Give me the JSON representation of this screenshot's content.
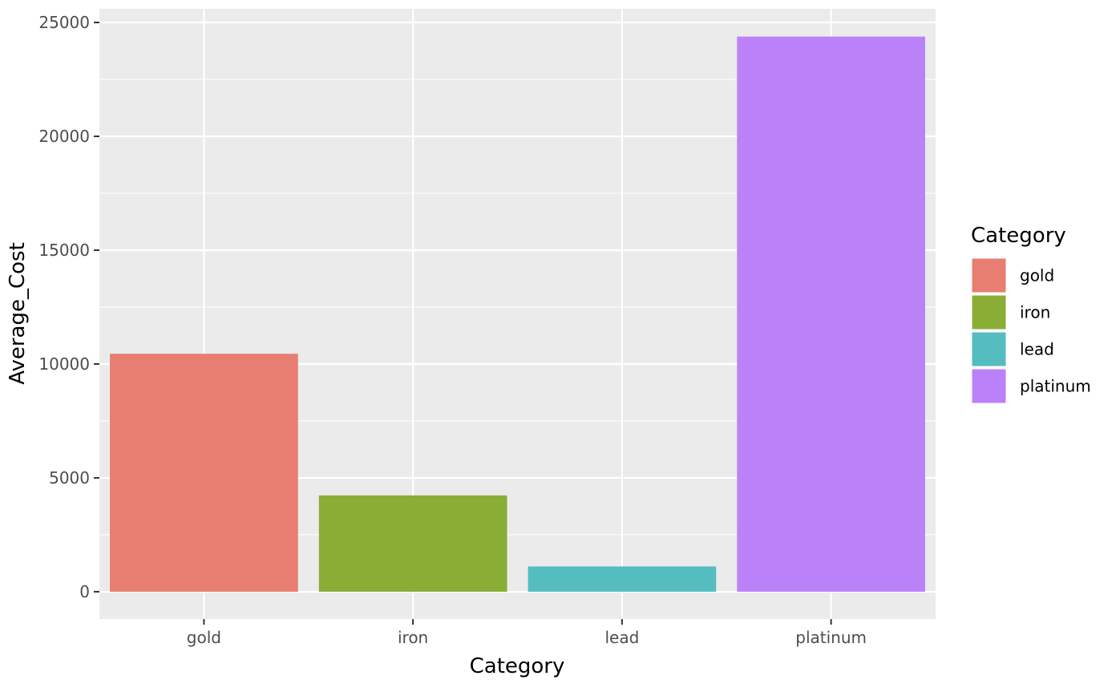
{
  "chart_data": {
    "type": "bar",
    "categories": [
      "gold",
      "iron",
      "lead",
      "platinum"
    ],
    "values": [
      10450,
      4230,
      1110,
      24380
    ],
    "colors": [
      "#E87E72",
      "#8AAD36",
      "#55BDC0",
      "#BB81F9"
    ],
    "xlabel": "Category",
    "ylabel": "Average_Cost",
    "ylim": [
      -1200,
      25600
    ],
    "y_ticks": [
      0,
      5000,
      10000,
      15000,
      20000,
      25000
    ],
    "y_tick_labels": [
      "0",
      "5000",
      "10000",
      "15000",
      "20000",
      "25000"
    ],
    "grid": true,
    "legend": {
      "title": "Category",
      "position": "right",
      "items": [
        "gold",
        "iron",
        "lead",
        "platinum"
      ]
    }
  }
}
